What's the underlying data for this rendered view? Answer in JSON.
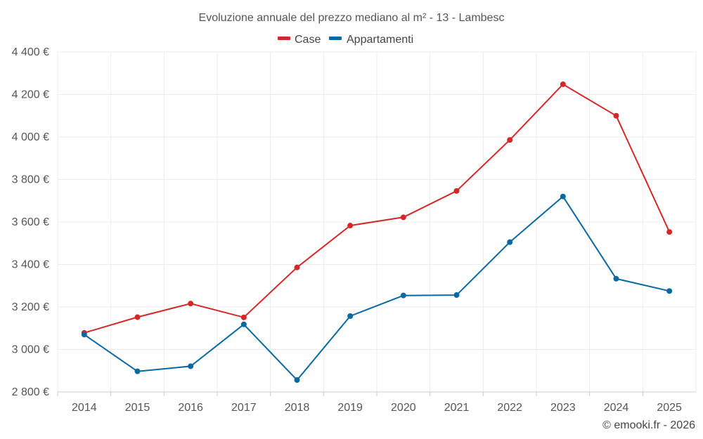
{
  "chart_data": {
    "type": "line",
    "title": "Evoluzione annuale del prezzo mediano al m² - 13 - Lambesc",
    "categories": [
      "2014",
      "2015",
      "2016",
      "2017",
      "2018",
      "2019",
      "2020",
      "2021",
      "2022",
      "2023",
      "2024",
      "2025"
    ],
    "series": [
      {
        "name": "Case",
        "color": "#d62728",
        "values": [
          3078,
          3152,
          3216,
          3151,
          3386,
          3583,
          3622,
          3746,
          3986,
          4248,
          4100,
          3553
        ]
      },
      {
        "name": "Appartamenti",
        "color": "#0868a0",
        "values": [
          3070,
          2897,
          2921,
          3118,
          2856,
          3157,
          3254,
          3256,
          3505,
          3720,
          3333,
          3275
        ]
      }
    ],
    "ylim": [
      2800,
      4400
    ],
    "yticks": [
      2800,
      3000,
      3200,
      3400,
      3600,
      3800,
      4000,
      4200,
      4400
    ],
    "ytick_labels": [
      "2 800 €",
      "3 000 €",
      "3 200 €",
      "3 400 €",
      "3 600 €",
      "3 800 €",
      "4 000 €",
      "4 200 €",
      "4 400 €"
    ],
    "grid": true,
    "legend_position": "top-center",
    "credit": "© emooki.fr - 2026"
  }
}
